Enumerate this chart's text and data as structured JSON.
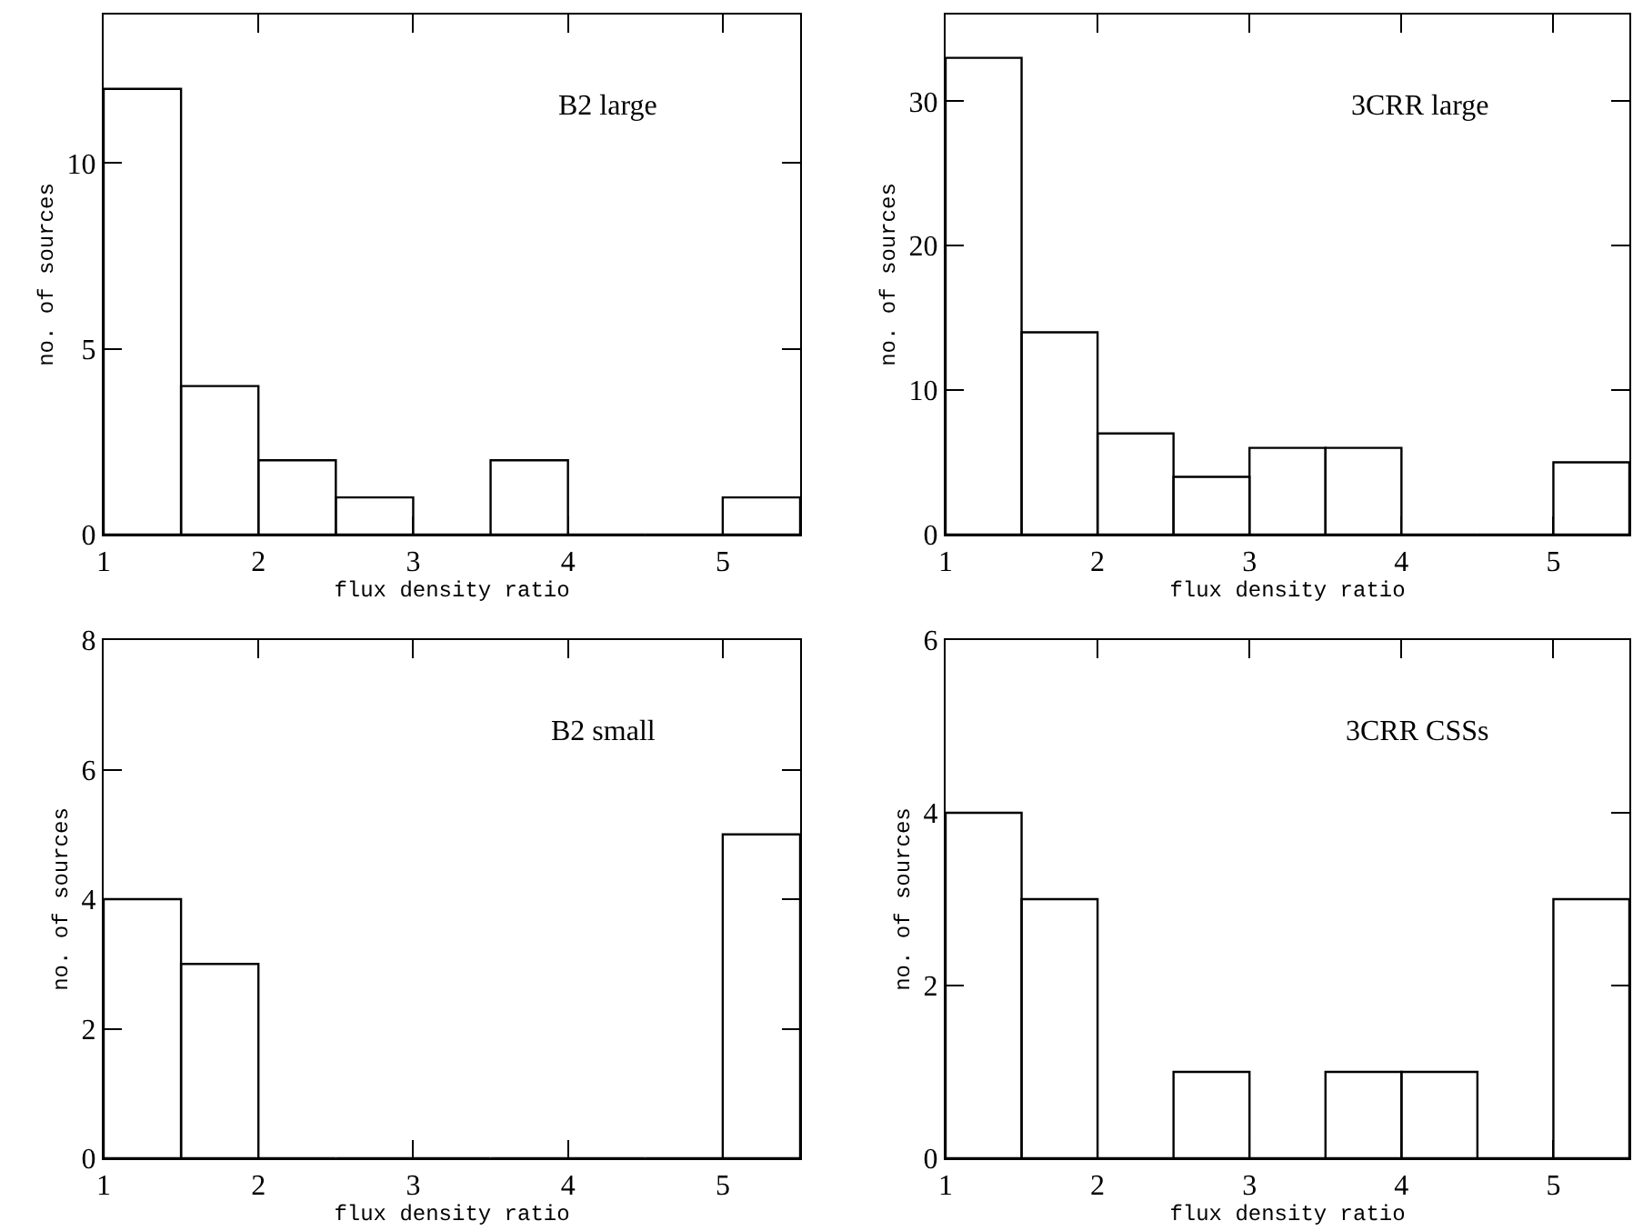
{
  "chart_data": [
    {
      "type": "histogram",
      "bins": [
        1,
        1.5,
        2,
        2.5,
        3,
        3.5,
        4,
        4.5,
        5,
        5.5
      ],
      "values": [
        12,
        4,
        2,
        1,
        0,
        2,
        0,
        0,
        1
      ],
      "color": "#000000",
      "xlim": [
        1,
        5.5
      ],
      "xticks": [
        1,
        2,
        3,
        4,
        5
      ],
      "ylim": [
        0,
        14
      ],
      "yticks": [
        0,
        5,
        10
      ],
      "xlabel": "flux density ratio",
      "ylabel": "no. of sources",
      "annotations": [
        "B2 large"
      ],
      "grid": false,
      "legend": false
    },
    {
      "type": "histogram",
      "bins": [
        1,
        1.5,
        2,
        2.5,
        3,
        3.5,
        4,
        4.5,
        5,
        5.5
      ],
      "values": [
        33,
        14,
        7,
        4,
        6,
        6,
        0,
        0,
        5
      ],
      "color": "#000000",
      "xlim": [
        1,
        5.5
      ],
      "xticks": [
        1,
        2,
        3,
        4,
        5
      ],
      "ylim": [
        0,
        36
      ],
      "yticks": [
        0,
        10,
        20,
        30
      ],
      "xlabel": "flux density ratio",
      "ylabel": "no. of sources",
      "annotations": [
        "3CRR large"
      ],
      "grid": false,
      "legend": false
    },
    {
      "type": "histogram",
      "bins": [
        1,
        1.5,
        2,
        2.5,
        3,
        3.5,
        4,
        4.5,
        5,
        5.5
      ],
      "values": [
        4,
        3,
        0,
        0,
        0,
        0,
        0,
        0,
        5
      ],
      "color": "#000000",
      "xlim": [
        1,
        5.5
      ],
      "xticks": [
        1,
        2,
        3,
        4,
        5
      ],
      "ylim": [
        0,
        8
      ],
      "yticks": [
        0,
        2,
        4,
        6,
        8
      ],
      "xlabel": "flux density ratio",
      "ylabel": "no. of sources",
      "annotations": [
        "B2 small"
      ],
      "grid": false,
      "legend": false
    },
    {
      "type": "histogram",
      "bins": [
        1,
        1.5,
        2,
        2.5,
        3,
        3.5,
        4,
        4.5,
        5,
        5.5
      ],
      "values": [
        4,
        3,
        0,
        1,
        0,
        1,
        1,
        0,
        3
      ],
      "color": "#000000",
      "xlim": [
        1,
        5.5
      ],
      "xticks": [
        1,
        2,
        3,
        4,
        5
      ],
      "ylim": [
        0,
        6
      ],
      "yticks": [
        0,
        2,
        4,
        6
      ],
      "xlabel": "flux density ratio",
      "ylabel": "no. of sources",
      "annotations": [
        "3CRR CSSs"
      ],
      "grid": false,
      "legend": false
    }
  ]
}
